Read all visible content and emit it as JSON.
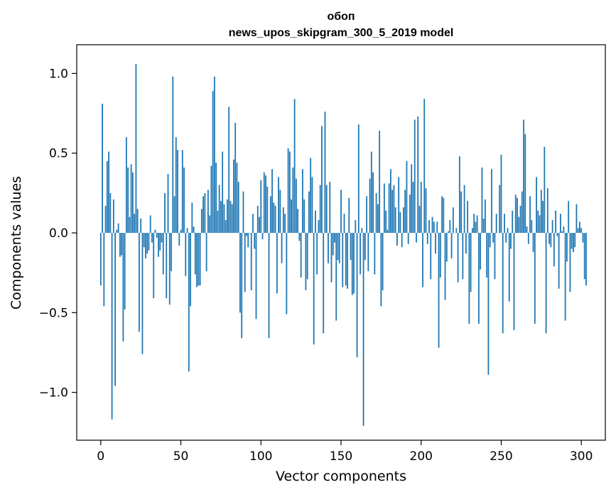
{
  "chart_data": {
    "type": "bar",
    "title": "обоп",
    "subtitle": "news_upos_skipgram_300_5_2019 model",
    "xlabel": "Vector components",
    "ylabel": "Components values",
    "xlim": [
      -15,
      315
    ],
    "ylim": [
      -1.3,
      1.18
    ],
    "xticks": [
      0,
      50,
      100,
      150,
      200,
      250,
      300
    ],
    "yticks": [
      -1.0,
      -0.5,
      0.0,
      0.5,
      1.0
    ],
    "ytick_labels": [
      "−1.0",
      "−0.5",
      "0.0",
      "0.5",
      "1.0"
    ],
    "grid": false,
    "bar_color": "#1f77b4",
    "x": "0..299",
    "values": [
      -0.33,
      0.81,
      -0.46,
      0.17,
      0.45,
      0.51,
      0.25,
      -1.17,
      0.21,
      -0.96,
      0.02,
      0.06,
      -0.15,
      -0.14,
      -0.68,
      -0.48,
      0.6,
      0.41,
      0.1,
      0.43,
      0.38,
      0.12,
      1.06,
      0.15,
      -0.62,
      0.09,
      -0.76,
      -0.09,
      -0.16,
      -0.13,
      -0.11,
      0.11,
      -0.06,
      -0.41,
      0.02,
      -0.03,
      -0.15,
      -0.11,
      -0.06,
      -0.26,
      0.25,
      -0.41,
      0.37,
      -0.45,
      -0.24,
      0.98,
      0.23,
      0.6,
      0.52,
      -0.08,
      0.02,
      0.52,
      0.41,
      -0.27,
      0.03,
      -0.87,
      -0.46,
      0.19,
      0.04,
      -0.26,
      -0.34,
      -0.33,
      -0.33,
      0.15,
      0.23,
      0.25,
      -0.24,
      0.27,
      0.11,
      0.42,
      0.89,
      0.98,
      0.44,
      0.14,
      0.3,
      0.2,
      0.51,
      0.18,
      0.08,
      0.21,
      0.79,
      0.2,
      0.18,
      0.46,
      0.69,
      0.44,
      0.32,
      -0.5,
      -0.66,
      0.26,
      -0.37,
      -0.02,
      -0.09,
      0.0,
      -0.36,
      0.12,
      -0.1,
      -0.54,
      0.17,
      0.1,
      0.33,
      -0.04,
      0.38,
      0.36,
      0.29,
      -0.66,
      0.23,
      0.4,
      0.19,
      0.17,
      -0.38,
      0.35,
      0.27,
      -0.19,
      0.16,
      0.12,
      -0.51,
      0.53,
      0.51,
      0.21,
      0.41,
      0.84,
      0.34,
      0.15,
      -0.05,
      -0.28,
      0.4,
      0.21,
      -0.36,
      -0.29,
      0.26,
      0.47,
      0.35,
      -0.7,
      0.14,
      -0.26,
      0.08,
      0.3,
      0.67,
      -0.63,
      0.76,
      0.3,
      -0.19,
      0.32,
      -0.31,
      -0.14,
      -0.06,
      -0.55,
      -0.17,
      -0.19,
      0.27,
      -0.34,
      0.12,
      -0.33,
      -0.35,
      0.22,
      -0.17,
      -0.39,
      -0.38,
      0.08,
      -0.78,
      0.68,
      -0.26,
      0.03,
      -1.21,
      -0.17,
      0.23,
      -0.24,
      0.34,
      0.51,
      0.38,
      -0.26,
      0.25,
      0.18,
      0.64,
      -0.46,
      -0.36,
      0.31,
      0.14,
      0.02,
      0.31,
      0.4,
      0.27,
      0.3,
      0.16,
      -0.08,
      0.35,
      0.13,
      -0.09,
      0.16,
      0.27,
      0.45,
      -0.07,
      0.24,
      0.43,
      0.32,
      0.71,
      -0.06,
      0.73,
      0.17,
      0.32,
      -0.34,
      0.84,
      0.28,
      -0.07,
      0.08,
      -0.29,
      0.1,
      0.07,
      -0.13,
      0.07,
      -0.72,
      -0.28,
      0.23,
      0.22,
      -0.42,
      -0.18,
      0.01,
      0.08,
      -0.16,
      0.16,
      0.0,
      0.03,
      -0.31,
      0.48,
      0.26,
      -0.29,
      0.3,
      -0.13,
      0.2,
      -0.57,
      -0.37,
      0.03,
      0.12,
      0.07,
      0.11,
      -0.57,
      -0.23,
      0.41,
      0.09,
      0.21,
      -0.28,
      -0.89,
      -0.09,
      0.4,
      -0.06,
      -0.29,
      0.12,
      0.0,
      0.3,
      0.49,
      -0.63,
      0.12,
      -0.06,
      0.03,
      -0.43,
      -0.1,
      0.14,
      -0.61,
      0.24,
      0.22,
      0.1,
      0.17,
      0.26,
      0.71,
      0.62,
      0.04,
      -0.07,
      0.23,
      0.08,
      -0.12,
      -0.57,
      0.35,
      0.14,
      0.11,
      0.27,
      0.2,
      0.54,
      -0.63,
      0.28,
      -0.07,
      -0.09,
      0.08,
      -0.21,
      0.14,
      -0.02,
      -0.35,
      0.12,
      0.01,
      0.04,
      -0.55,
      -0.18,
      0.2,
      -0.37,
      -0.1,
      -0.12,
      -0.09,
      0.18,
      0.03,
      0.07,
      0.03,
      -0.06,
      -0.29,
      -0.33
    ]
  }
}
